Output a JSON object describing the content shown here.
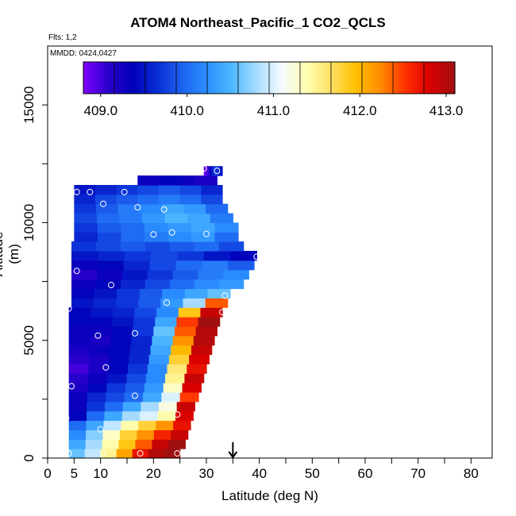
{
  "chart_data": {
    "type": "heatmap",
    "title": "ATOM4 Northeast_Pacific_1 CO2_QCLS",
    "flights_note": "Flts: 1,2",
    "date_note": "MMDD: 0424,0427",
    "xlabel": "Latitude (deg N)",
    "ylabel": "Altitude (m)",
    "xlim": [
      0,
      84
    ],
    "ylim": [
      0,
      17500
    ],
    "x_ticks": [
      0,
      5,
      10,
      20,
      30,
      40,
      50,
      60,
      70,
      80
    ],
    "y_ticks": [
      0,
      5000,
      10000,
      15000
    ],
    "colorbar": {
      "range": [
        408.8,
        413.1
      ],
      "tick_values": [
        409.0,
        410.0,
        411.0,
        412.0,
        413.0
      ],
      "tick_labels": [
        "409.0",
        "410.0",
        "411.0",
        "412.0",
        "413.0"
      ],
      "colors": [
        "#7f00ff",
        "#2b00cc",
        "#0000b8",
        "#0a2fd6",
        "#1e63f0",
        "#2b90ff",
        "#4cb8ff",
        "#a8dcff",
        "#f4fbff",
        "#ffffb0",
        "#ffe066",
        "#ffc000",
        "#ff8c00",
        "#ff3000",
        "#d80000",
        "#a01010"
      ]
    },
    "marker_latitude": 35,
    "grid": false,
    "rows": [
      {
        "alt": 200,
        "lat_min": 4,
        "lat_max": 25,
        "values": [
          410.6,
          410.9,
          411.5,
          412.1,
          412.7,
          413.0,
          413.1
        ]
      },
      {
        "alt": 600,
        "lat_min": 4,
        "lat_max": 26,
        "values": [
          410.4,
          410.8,
          411.4,
          411.9,
          412.4,
          412.9,
          413.1
        ]
      },
      {
        "alt": 1000,
        "lat_min": 4,
        "lat_max": 26.5,
        "values": [
          410.2,
          410.7,
          411.3,
          411.8,
          412.2,
          412.6,
          412.9
        ]
      },
      {
        "alt": 1400,
        "lat_min": 4,
        "lat_max": 27,
        "values": [
          410.0,
          410.4,
          410.9,
          411.4,
          411.8,
          412.2,
          412.7
        ]
      },
      {
        "alt": 1800,
        "lat_min": 4,
        "lat_max": 27.5,
        "values": [
          409.4,
          410.0,
          410.4,
          410.8,
          411.0,
          411.4,
          412.8
        ]
      },
      {
        "alt": 2200,
        "lat_min": 4,
        "lat_max": 27.8,
        "values": [
          409.3,
          409.7,
          410.0,
          410.4,
          410.8,
          411.2,
          412.9
        ]
      },
      {
        "alt": 2600,
        "lat_min": 4,
        "lat_max": 28.5,
        "values": [
          409.3,
          409.6,
          409.8,
          410.0,
          410.4,
          411.0,
          412.5
        ]
      },
      {
        "alt": 3000,
        "lat_min": 4,
        "lat_max": 29,
        "values": [
          409.2,
          409.4,
          409.7,
          409.9,
          410.3,
          411.3,
          412.8
        ]
      },
      {
        "alt": 3400,
        "lat_min": 4,
        "lat_max": 29.5,
        "values": [
          409.1,
          409.3,
          409.5,
          409.8,
          410.2,
          411.5,
          412.9
        ]
      },
      {
        "alt": 3800,
        "lat_min": 4,
        "lat_max": 30,
        "values": [
          409.0,
          409.2,
          409.4,
          409.7,
          410.2,
          411.6,
          412.7
        ]
      },
      {
        "alt": 4200,
        "lat_min": 4,
        "lat_max": 30.5,
        "values": [
          409.1,
          409.2,
          409.4,
          409.6,
          410.3,
          411.8,
          412.8
        ]
      },
      {
        "alt": 4600,
        "lat_min": 4,
        "lat_max": 31,
        "values": [
          409.2,
          409.3,
          409.4,
          409.6,
          410.4,
          412.0,
          412.9
        ]
      },
      {
        "alt": 5000,
        "lat_min": 4,
        "lat_max": 31.5,
        "values": [
          409.3,
          409.2,
          409.4,
          409.6,
          410.5,
          412.2,
          413.0
        ]
      },
      {
        "alt": 5400,
        "lat_min": 4,
        "lat_max": 32,
        "values": [
          409.3,
          409.3,
          409.4,
          409.7,
          410.6,
          412.4,
          413.0
        ]
      },
      {
        "alt": 5800,
        "lat_min": 4,
        "lat_max": 32.5,
        "values": [
          409.4,
          409.4,
          409.5,
          409.7,
          410.4,
          412.5,
          413.1
        ]
      },
      {
        "alt": 6200,
        "lat_min": 4,
        "lat_max": 33,
        "values": [
          409.4,
          409.5,
          409.6,
          409.8,
          410.2,
          411.9,
          412.9
        ]
      },
      {
        "alt": 6600,
        "lat_min": 4.5,
        "lat_max": 34,
        "values": [
          409.5,
          409.6,
          409.7,
          409.9,
          410.3,
          410.8,
          412.4
        ]
      },
      {
        "alt": 7000,
        "lat_min": 4.5,
        "lat_max": 34.5,
        "values": [
          409.4,
          409.5,
          409.7,
          409.9,
          410.2,
          410.4,
          410.6
        ]
      },
      {
        "alt": 7400,
        "lat_min": 4.5,
        "lat_max": 37,
        "values": [
          409.3,
          409.4,
          409.6,
          409.8,
          410.0,
          410.2,
          410.3
        ]
      },
      {
        "alt": 7800,
        "lat_min": 4.5,
        "lat_max": 38,
        "values": [
          409.1,
          409.3,
          409.5,
          409.7,
          409.9,
          410.1,
          410.2
        ]
      },
      {
        "alt": 8200,
        "lat_min": 4.5,
        "lat_max": 39,
        "values": [
          409.3,
          409.4,
          409.6,
          409.8,
          410.0,
          410.1,
          409.9
        ]
      },
      {
        "alt": 8600,
        "lat_min": 4.5,
        "lat_max": 39.5,
        "values": [
          409.5,
          409.6,
          409.7,
          409.8,
          409.7,
          409.5,
          409.4
        ]
      },
      {
        "alt": 9000,
        "lat_min": 4.5,
        "lat_max": 37,
        "values": [
          409.7,
          409.8,
          409.9,
          409.8,
          409.9,
          410.0,
          409.8
        ]
      },
      {
        "alt": 9400,
        "lat_min": 5,
        "lat_max": 36,
        "values": [
          409.6,
          409.8,
          410.0,
          410.1,
          410.2,
          410.3,
          410.0
        ]
      },
      {
        "alt": 9800,
        "lat_min": 5,
        "lat_max": 36,
        "values": [
          409.7,
          409.9,
          410.0,
          410.2,
          410.3,
          410.4,
          410.2
        ]
      },
      {
        "alt": 10200,
        "lat_min": 5,
        "lat_max": 35,
        "values": [
          409.8,
          410.0,
          410.1,
          410.3,
          410.5,
          410.4,
          410.1
        ]
      },
      {
        "alt": 10600,
        "lat_min": 5,
        "lat_max": 34,
        "values": [
          409.7,
          409.9,
          410.1,
          410.2,
          410.4,
          410.3,
          410.0
        ]
      },
      {
        "alt": 11000,
        "lat_min": 5,
        "lat_max": 33,
        "values": [
          409.6,
          409.8,
          409.9,
          410.0,
          410.1,
          410.0,
          409.8
        ]
      },
      {
        "alt": 11400,
        "lat_min": 5,
        "lat_max": 33,
        "values": [
          409.5,
          409.6,
          409.7,
          409.8,
          409.9,
          409.8,
          409.6
        ]
      },
      {
        "alt": 11800,
        "lat_min": 17,
        "lat_max": 32,
        "values": [
          409.3,
          409.3,
          409.4,
          409.4,
          409.3,
          409.2,
          409.2
        ]
      },
      {
        "alt": 12200,
        "lat_min": 29.5,
        "lat_max": 33,
        "values": [
          408.9,
          409.0,
          409.4,
          409.6,
          409.7,
          409.6,
          409.5
        ]
      }
    ],
    "samples": [
      {
        "lat": 4,
        "alt": 200
      },
      {
        "lat": 10.5,
        "alt": 200
      },
      {
        "lat": 17.5,
        "alt": 200
      },
      {
        "lat": 24.5,
        "alt": 200
      },
      {
        "lat": 10,
        "alt": 1220
      },
      {
        "lat": 3.5,
        "alt": 1700
      },
      {
        "lat": 24.5,
        "alt": 1850
      },
      {
        "lat": 16.5,
        "alt": 2650
      },
      {
        "lat": 4.5,
        "alt": 3050
      },
      {
        "lat": 11,
        "alt": 3850
      },
      {
        "lat": 9.5,
        "alt": 5200
      },
      {
        "lat": 16.5,
        "alt": 5300
      },
      {
        "lat": 4,
        "alt": 6350
      },
      {
        "lat": 22.5,
        "alt": 6600
      },
      {
        "lat": 33.5,
        "alt": 6900
      },
      {
        "lat": 33,
        "alt": 6200
      },
      {
        "lat": 12,
        "alt": 7350
      },
      {
        "lat": 5.5,
        "alt": 7950
      },
      {
        "lat": 39.5,
        "alt": 8550
      },
      {
        "lat": 20,
        "alt": 9500
      },
      {
        "lat": 23.5,
        "alt": 9580
      },
      {
        "lat": 30,
        "alt": 9520
      },
      {
        "lat": 17,
        "alt": 10650
      },
      {
        "lat": 22,
        "alt": 10560
      },
      {
        "lat": 10.5,
        "alt": 10800
      },
      {
        "lat": 5.5,
        "alt": 11300
      },
      {
        "lat": 8,
        "alt": 11300
      },
      {
        "lat": 14.5,
        "alt": 11300
      },
      {
        "lat": 29.5,
        "alt": 12300
      },
      {
        "lat": 32,
        "alt": 12200
      }
    ]
  }
}
